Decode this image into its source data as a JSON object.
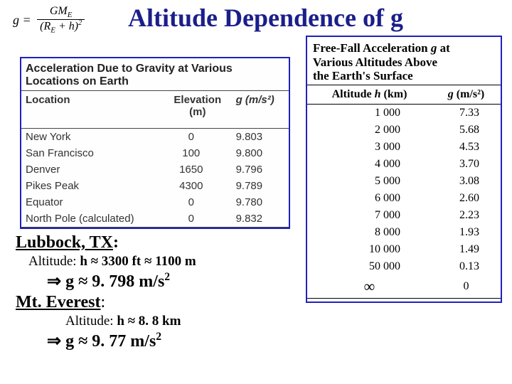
{
  "title": "Altitude Dependence of g",
  "formula": {
    "lhs_var": "g",
    "equals": " = ",
    "num_G": "G",
    "num_M": "M",
    "num_sub": "E",
    "den_open": "(",
    "den_R": "R",
    "den_sub": "E",
    "den_plus": " + ",
    "den_h": "h",
    "den_close": ")",
    "den_exp": "2"
  },
  "left_table": {
    "caption": "Acceleration Due to Gravity at Various Locations on Earth",
    "headers": {
      "loc": "Location",
      "elev_main": "Elevation",
      "elev_unit": "(m)",
      "g": "g (m/s²)"
    },
    "rows": [
      {
        "loc": "New York",
        "elev": "0",
        "g": "9.803"
      },
      {
        "loc": "San Francisco",
        "elev": "100",
        "g": "9.800"
      },
      {
        "loc": "Denver",
        "elev": "1650",
        "g": "9.796"
      },
      {
        "loc": "Pikes Peak",
        "elev": "4300",
        "g": "9.789"
      },
      {
        "loc": "Equator",
        "elev": "0",
        "g": "9.780"
      },
      {
        "loc": "North Pole (calculated)",
        "elev": "0",
        "g": "9.832"
      }
    ]
  },
  "right_table": {
    "caption_l1": "Free-Fall Acceleration ",
    "caption_g": "g",
    "caption_l1b": " at",
    "caption_l2": "Various Altitudes Above",
    "caption_l3": "the Earth's Surface",
    "headers": {
      "alt_pre": "Altitude ",
      "alt_h": "h",
      "alt_unit": " (km)",
      "g_pre": "g",
      "g_unit": " (m/s²)"
    },
    "rows": [
      {
        "alt": "1 000",
        "g": "7.33"
      },
      {
        "alt": "2 000",
        "g": "5.68"
      },
      {
        "alt": "3 000",
        "g": "4.53"
      },
      {
        "alt": "4 000",
        "g": "3.70"
      },
      {
        "alt": "5 000",
        "g": "3.08"
      },
      {
        "alt": "6 000",
        "g": "2.60"
      },
      {
        "alt": "7 000",
        "g": "2.23"
      },
      {
        "alt": "8 000",
        "g": "1.93"
      },
      {
        "alt": "10 000",
        "g": "1.49"
      },
      {
        "alt": "50 000",
        "g": "0.13"
      },
      {
        "alt": "∞",
        "g": "0"
      }
    ]
  },
  "annot": {
    "lubbock_name": "Lubbock, TX",
    "colon": ":",
    "lubbock_alt_pre": "Altitude: ",
    "lubbock_alt_bold": "h ≈ 3300 ft ≈ 1100 m",
    "lubbock_g_arrow": "⇒ ",
    "lubbock_g_bold": "g ≈  9. 798 m/s",
    "lubbock_g_sup": "2",
    "everest_name": "Mt. Everest",
    "everest_alt_pre": "Altitude: ",
    "everest_alt_bold": "h ≈ 8. 8 km",
    "everest_g_arrow": "⇒ ",
    "everest_g_bold": "g ≈  9. 77 m/s",
    "everest_g_sup": "2"
  },
  "colors": {
    "title": "#1b1f8a",
    "border": "#2020c0",
    "text": "#000000"
  }
}
